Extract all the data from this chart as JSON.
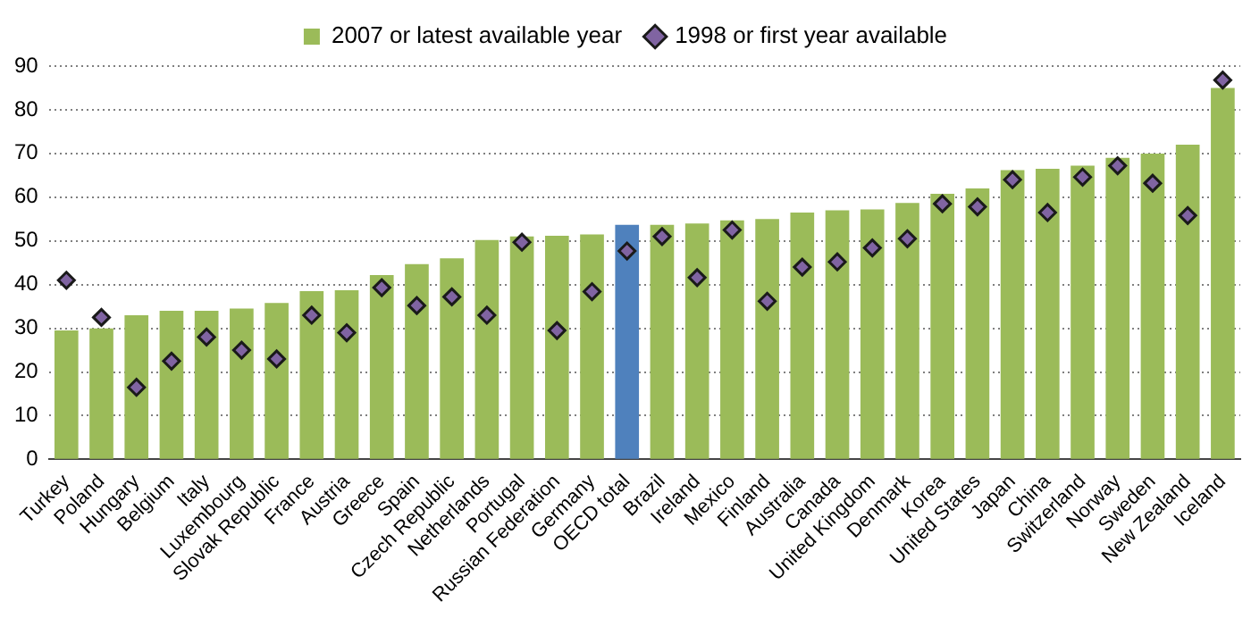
{
  "chart_data": {
    "type": "bar",
    "categories": [
      "Turkey",
      "Poland",
      "Hungary",
      "Belgium",
      "Italy",
      "Luxembourg",
      "Slovak Republic",
      "France",
      "Austria",
      "Greece",
      "Spain",
      "Czech Republic",
      "Netherlands",
      "Portugal",
      "Russian Federation",
      "Germany",
      "OECD total",
      "Brazil",
      "Ireland",
      "Mexico",
      "Finland",
      "Australia",
      "Canada",
      "United Kingdom",
      "Denmark",
      "Korea",
      "United States",
      "Japan",
      "China",
      "Switzerland",
      "Norway",
      "Sweden",
      "New Zealand",
      "Iceland"
    ],
    "series": [
      {
        "name": "2007 or latest available year",
        "color": "#9bbb59",
        "colors": [
          "#9bbb59",
          "#9bbb59",
          "#9bbb59",
          "#9bbb59",
          "#9bbb59",
          "#9bbb59",
          "#9bbb59",
          "#9bbb59",
          "#9bbb59",
          "#9bbb59",
          "#9bbb59",
          "#9bbb59",
          "#9bbb59",
          "#9bbb59",
          "#9bbb59",
          "#9bbb59",
          "#4f81bd",
          "#9bbb59",
          "#9bbb59",
          "#9bbb59",
          "#9bbb59",
          "#9bbb59",
          "#9bbb59",
          "#9bbb59",
          "#9bbb59",
          "#9bbb59",
          "#9bbb59",
          "#9bbb59",
          "#9bbb59",
          "#9bbb59",
          "#9bbb59",
          "#9bbb59",
          "#9bbb59",
          "#9bbb59"
        ],
        "values": [
          29.5,
          30,
          33,
          34,
          34,
          34.5,
          35.8,
          38.5,
          38.7,
          42.2,
          44.7,
          46,
          50.2,
          51,
          51.2,
          51.5,
          53.7,
          53.7,
          54,
          54.7,
          55,
          56.5,
          57,
          57.2,
          58.7,
          60.8,
          62,
          66.2,
          66.5,
          67.2,
          69,
          70,
          72,
          85
        ]
      },
      {
        "name": "1998 or first year available",
        "type": "scatter",
        "marker": "diamond",
        "color": "#8064a2",
        "x": [
          "Turkey",
          "Poland",
          "Hungary",
          "Belgium",
          "Italy",
          "Luxembourg",
          "Slovak Republic",
          "France",
          "Austria",
          "Greece",
          "Spain",
          "Czech Republic",
          "Netherlands",
          "Portugal",
          "Russian Federation",
          "Germany",
          "OECD total",
          "Brazil",
          "Ireland",
          "Mexico",
          "Finland",
          "Australia",
          "Canada",
          "United Kingdom",
          "Denmark",
          "Korea",
          "United States",
          "Japan",
          "China",
          "Switzerland",
          "Norway",
          "Sweden",
          "New Zealand",
          "Iceland"
        ],
        "values": [
          41,
          32.5,
          16.5,
          22.5,
          28,
          25,
          23,
          33,
          29,
          39.3,
          35.2,
          37.2,
          33,
          49.7,
          29.5,
          38.4,
          47.7,
          51,
          41.6,
          52.5,
          36.2,
          44,
          45.2,
          48.4,
          50.5,
          58.5,
          57.8,
          64,
          56.5,
          64.6,
          67.2,
          63.2,
          55.8,
          86.8
        ]
      }
    ],
    "ylim": [
      0,
      90
    ],
    "yticks": [
      0,
      10,
      20,
      30,
      40,
      50,
      60,
      70,
      80,
      90
    ],
    "grid": "y",
    "legend": "top"
  }
}
